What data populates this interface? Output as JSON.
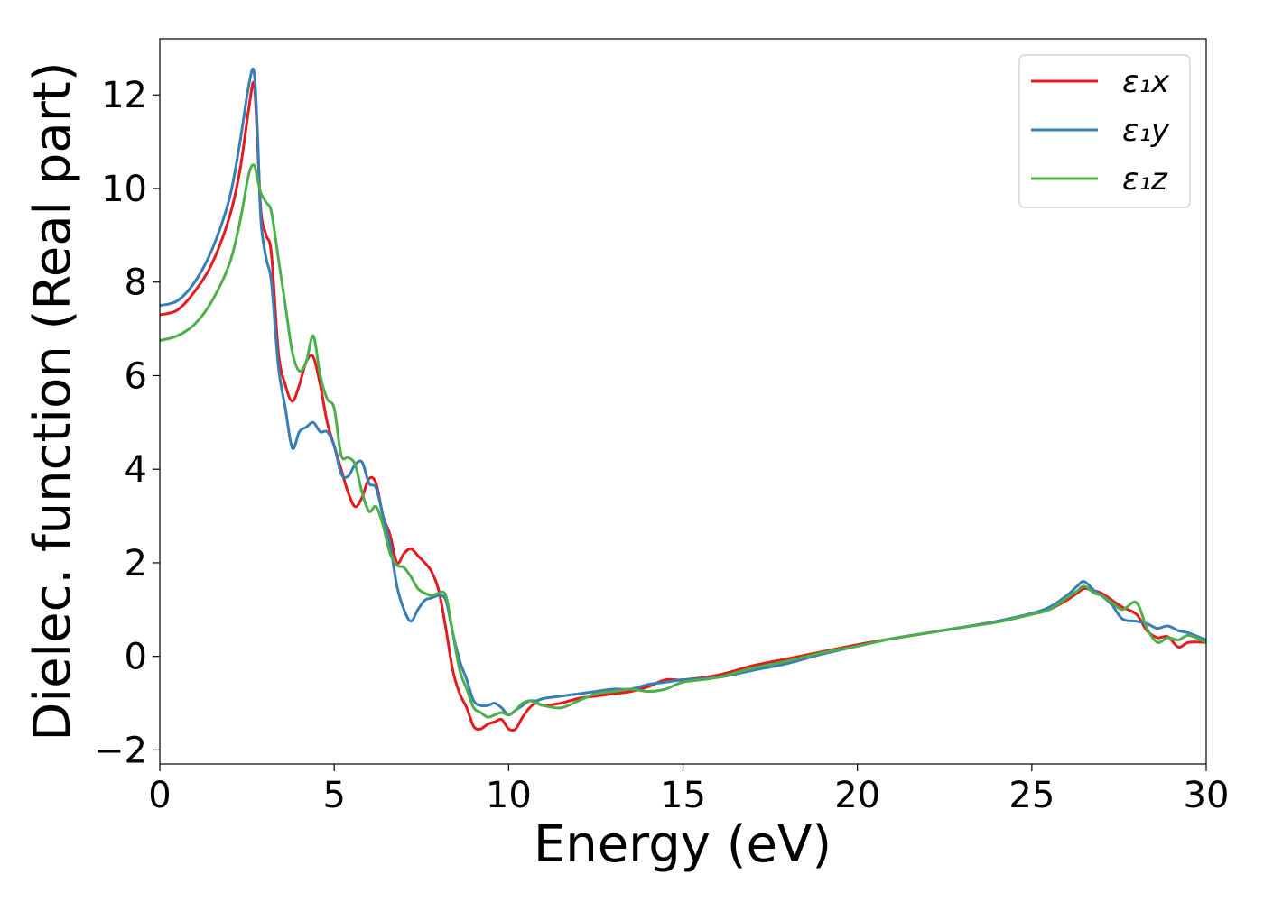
{
  "chart_data": {
    "type": "line",
    "title": "",
    "xlabel": "Energy (eV)",
    "ylabel": "Dielec. function (Real part)",
    "xlim": [
      0,
      30
    ],
    "ylim": [
      -2.3,
      13.2
    ],
    "xticks": [
      0,
      5,
      10,
      15,
      20,
      25,
      30
    ],
    "yticks": [
      -2,
      0,
      2,
      4,
      6,
      8,
      10,
      12
    ],
    "xtick_labels": [
      "0",
      "5",
      "10",
      "15",
      "20",
      "25",
      "30"
    ],
    "ytick_labels": [
      "−2",
      "0",
      "2",
      "4",
      "6",
      "8",
      "10",
      "12"
    ],
    "grid": false,
    "legend_position": "top-right",
    "series": [
      {
        "name": "ε₁x",
        "color": "#e41a1c",
        "x": [
          0,
          0.5,
          1.0,
          1.5,
          2.0,
          2.3,
          2.55,
          2.7,
          2.8,
          2.9,
          3.05,
          3.2,
          3.4,
          3.6,
          3.8,
          4.0,
          4.2,
          4.4,
          4.6,
          4.8,
          5.0,
          5.2,
          5.4,
          5.6,
          5.8,
          6.0,
          6.2,
          6.4,
          6.6,
          6.8,
          7.0,
          7.2,
          7.4,
          7.6,
          7.8,
          8.0,
          8.2,
          8.4,
          8.6,
          8.8,
          9.0,
          9.2,
          9.4,
          9.6,
          9.8,
          10.0,
          10.2,
          10.4,
          10.6,
          10.8,
          11.0,
          11.5,
          12.0,
          12.5,
          13.0,
          13.5,
          14.0,
          14.5,
          15.0,
          16.0,
          17.0,
          18.0,
          19.0,
          20.0,
          21.0,
          22.0,
          23.0,
          24.0,
          25.0,
          25.5,
          26.0,
          26.3,
          26.5,
          26.8,
          27.0,
          27.3,
          27.6,
          28.0,
          28.3,
          28.6,
          28.9,
          29.2,
          29.5,
          30.0
        ],
        "y": [
          7.3,
          7.4,
          7.8,
          8.4,
          9.4,
          10.4,
          11.7,
          12.25,
          11.0,
          9.5,
          9.0,
          8.6,
          6.5,
          5.8,
          5.45,
          5.8,
          6.3,
          6.4,
          5.8,
          5.0,
          4.5,
          4.0,
          3.5,
          3.2,
          3.4,
          3.8,
          3.7,
          3.0,
          2.6,
          2.0,
          2.2,
          2.3,
          2.15,
          2.0,
          1.8,
          1.4,
          0.6,
          -0.3,
          -0.8,
          -1.1,
          -1.5,
          -1.55,
          -1.45,
          -1.4,
          -1.35,
          -1.55,
          -1.55,
          -1.3,
          -1.1,
          -1.0,
          -1.05,
          -1.0,
          -0.9,
          -0.85,
          -0.8,
          -0.75,
          -0.65,
          -0.5,
          -0.5,
          -0.4,
          -0.2,
          -0.05,
          0.1,
          0.25,
          0.38,
          0.5,
          0.62,
          0.75,
          0.9,
          1.0,
          1.2,
          1.35,
          1.45,
          1.4,
          1.35,
          1.2,
          1.05,
          0.9,
          0.55,
          0.4,
          0.42,
          0.2,
          0.3,
          0.3
        ]
      },
      {
        "name": "ε₁y",
        "color": "#377eb8",
        "x": [
          0,
          0.5,
          1.0,
          1.5,
          2.0,
          2.3,
          2.55,
          2.7,
          2.8,
          2.9,
          3.05,
          3.2,
          3.4,
          3.6,
          3.8,
          4.0,
          4.2,
          4.4,
          4.6,
          4.8,
          5.0,
          5.2,
          5.4,
          5.6,
          5.8,
          6.0,
          6.2,
          6.4,
          6.6,
          6.8,
          7.0,
          7.2,
          7.4,
          7.6,
          7.8,
          8.0,
          8.2,
          8.4,
          8.6,
          8.8,
          9.0,
          9.2,
          9.4,
          9.6,
          9.8,
          10.0,
          10.2,
          10.4,
          10.6,
          10.8,
          11.0,
          11.5,
          12.0,
          12.5,
          13.0,
          13.5,
          14.0,
          14.5,
          15.0,
          16.0,
          17.0,
          18.0,
          19.0,
          20.0,
          21.0,
          22.0,
          23.0,
          24.0,
          25.0,
          25.5,
          26.0,
          26.3,
          26.5,
          26.8,
          27.0,
          27.3,
          27.6,
          28.0,
          28.3,
          28.6,
          28.9,
          29.2,
          29.5,
          30.0
        ],
        "y": [
          7.5,
          7.6,
          8.0,
          8.7,
          9.8,
          11.0,
          12.2,
          12.5,
          11.2,
          9.3,
          8.5,
          8.0,
          6.2,
          5.3,
          4.45,
          4.8,
          4.9,
          5.0,
          4.8,
          4.8,
          4.5,
          3.9,
          3.85,
          4.1,
          4.15,
          3.7,
          3.6,
          3.0,
          2.4,
          1.5,
          1.0,
          0.75,
          1.0,
          1.2,
          1.25,
          1.3,
          1.2,
          0.5,
          -0.1,
          -0.5,
          -0.95,
          -1.05,
          -1.05,
          -1.0,
          -1.1,
          -1.25,
          -1.15,
          -1.05,
          -0.95,
          -0.95,
          -0.9,
          -0.85,
          -0.8,
          -0.75,
          -0.7,
          -0.7,
          -0.6,
          -0.55,
          -0.5,
          -0.45,
          -0.3,
          -0.15,
          0.05,
          0.22,
          0.38,
          0.5,
          0.62,
          0.75,
          0.92,
          1.05,
          1.3,
          1.5,
          1.6,
          1.4,
          1.3,
          1.1,
          0.8,
          0.75,
          0.7,
          0.6,
          0.65,
          0.55,
          0.5,
          0.35
        ]
      },
      {
        "name": "ε₁z",
        "color": "#4daf4a",
        "x": [
          0,
          0.5,
          1.0,
          1.5,
          2.0,
          2.3,
          2.55,
          2.7,
          2.8,
          2.9,
          3.05,
          3.2,
          3.4,
          3.6,
          3.8,
          4.0,
          4.2,
          4.4,
          4.6,
          4.8,
          5.0,
          5.2,
          5.4,
          5.6,
          5.8,
          6.0,
          6.2,
          6.4,
          6.6,
          6.8,
          7.0,
          7.2,
          7.4,
          7.6,
          7.8,
          8.0,
          8.2,
          8.4,
          8.6,
          8.8,
          9.0,
          9.2,
          9.4,
          9.6,
          9.8,
          10.0,
          10.2,
          10.4,
          10.6,
          10.8,
          11.0,
          11.5,
          12.0,
          12.5,
          13.0,
          13.5,
          14.0,
          14.5,
          15.0,
          16.0,
          17.0,
          18.0,
          19.0,
          20.0,
          21.0,
          22.0,
          23.0,
          24.0,
          25.0,
          25.5,
          26.0,
          26.3,
          26.5,
          26.8,
          27.0,
          27.3,
          27.6,
          28.0,
          28.3,
          28.6,
          28.9,
          29.2,
          29.5,
          30.0
        ],
        "y": [
          6.75,
          6.85,
          7.1,
          7.6,
          8.4,
          9.3,
          10.3,
          10.5,
          10.2,
          9.9,
          9.7,
          9.5,
          8.5,
          7.5,
          6.5,
          6.1,
          6.3,
          6.85,
          6.0,
          5.5,
          5.3,
          4.3,
          4.25,
          4.1,
          3.5,
          3.1,
          3.2,
          2.8,
          2.2,
          1.95,
          1.9,
          1.7,
          1.45,
          1.35,
          1.3,
          1.35,
          1.3,
          0.5,
          -0.3,
          -0.7,
          -1.1,
          -1.2,
          -1.3,
          -1.25,
          -1.2,
          -1.25,
          -1.15,
          -1.0,
          -0.95,
          -1.0,
          -1.05,
          -1.1,
          -0.95,
          -0.8,
          -0.75,
          -0.7,
          -0.75,
          -0.7,
          -0.55,
          -0.45,
          -0.25,
          -0.1,
          0.08,
          0.22,
          0.38,
          0.5,
          0.62,
          0.73,
          0.9,
          1.0,
          1.25,
          1.4,
          1.5,
          1.35,
          1.3,
          1.15,
          1.0,
          1.15,
          0.6,
          0.3,
          0.4,
          0.35,
          0.45,
          0.3
        ]
      }
    ]
  }
}
